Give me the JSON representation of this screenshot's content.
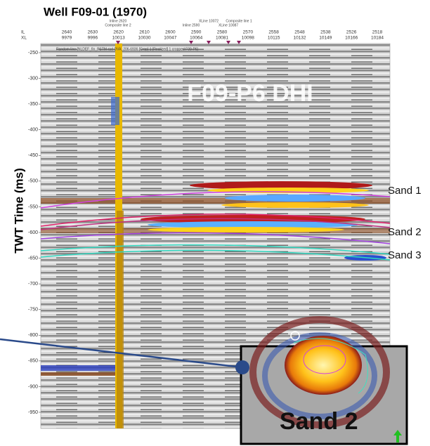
{
  "title": "Well F09-01 (1970)",
  "section": {
    "label": "F09-P6 DHI",
    "caption": "Random line [NLDEF_fin_PSTM-rad-DVA_206-6936 [Crop] 1 [Realized] 1 cropped F09-P6]",
    "axis_label": "TWT Time (ms)",
    "header_keys": [
      "IL",
      "XL"
    ],
    "inlines": [
      "2640",
      "2630",
      "2620",
      "2610",
      "2600",
      "2590",
      "2580",
      "2570",
      "2558",
      "2548",
      "2538",
      "2526",
      "2518"
    ],
    "xlines": [
      "9979",
      "9996",
      "10013",
      "10030",
      "10047",
      "10064",
      "10081",
      "10098",
      "10115",
      "10132",
      "10149",
      "10166",
      "10184"
    ],
    "annotations": [
      "Inline 2620",
      "Composite line 2",
      "Inline 2590",
      "XLine 10072",
      "XLine 10087",
      "Composite line 1"
    ],
    "time_ticks": [
      "-250",
      "-300",
      "-350",
      "-400",
      "-450",
      "-500",
      "-550",
      "-600",
      "-650",
      "-700",
      "-750",
      "-800",
      "-850",
      "-900",
      "-950"
    ],
    "horizons": [
      "Sand 1",
      "Sand 2",
      "Sand 3"
    ]
  },
  "inset": {
    "label": "Sand 2"
  }
}
